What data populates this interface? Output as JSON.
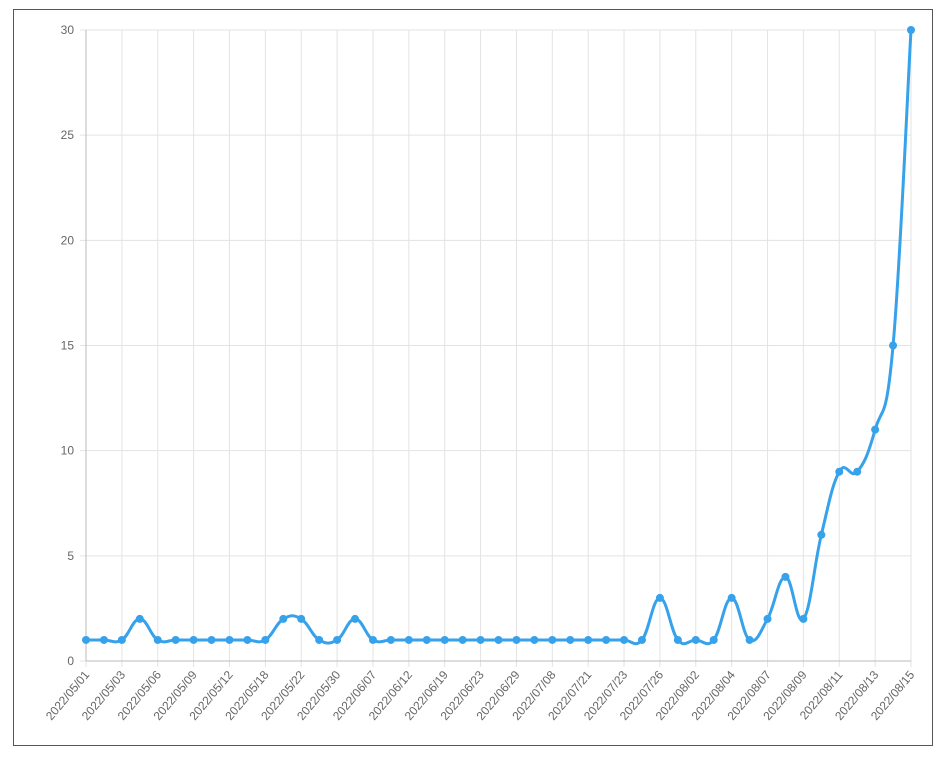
{
  "chart_data": {
    "type": "line",
    "categories": [
      "2022/05/01",
      null,
      "2022/05/03",
      null,
      "2022/05/06",
      null,
      "2022/05/09",
      null,
      "2022/05/12",
      null,
      "2022/05/18",
      null,
      "2022/05/22",
      null,
      "2022/05/30",
      null,
      "2022/06/07",
      null,
      "2022/06/12",
      null,
      "2022/06/19",
      null,
      "2022/06/23",
      null,
      "2022/06/29",
      null,
      "2022/07/08",
      null,
      "2022/07/21",
      null,
      "2022/07/23",
      null,
      "2022/07/26",
      null,
      "2022/08/02",
      null,
      "2022/08/04",
      null,
      "2022/08/07",
      null,
      "2022/08/09",
      null,
      "2022/08/11",
      null,
      "2022/08/13",
      null,
      "2022/08/15"
    ],
    "values": [
      1,
      1,
      1,
      2,
      1,
      1,
      1,
      1,
      1,
      1,
      1,
      2,
      2,
      1,
      1,
      2,
      1,
      1,
      1,
      1,
      1,
      1,
      1,
      1,
      1,
      1,
      1,
      1,
      1,
      1,
      1,
      1,
      3,
      1,
      1,
      1,
      3,
      1,
      2,
      4,
      2,
      6,
      9,
      9,
      11,
      15,
      30
    ],
    "color": "#36a2eb",
    "ylim": [
      0,
      30
    ],
    "yticks": [
      0,
      5,
      10,
      15,
      20,
      25,
      30
    ],
    "grid": true
  }
}
